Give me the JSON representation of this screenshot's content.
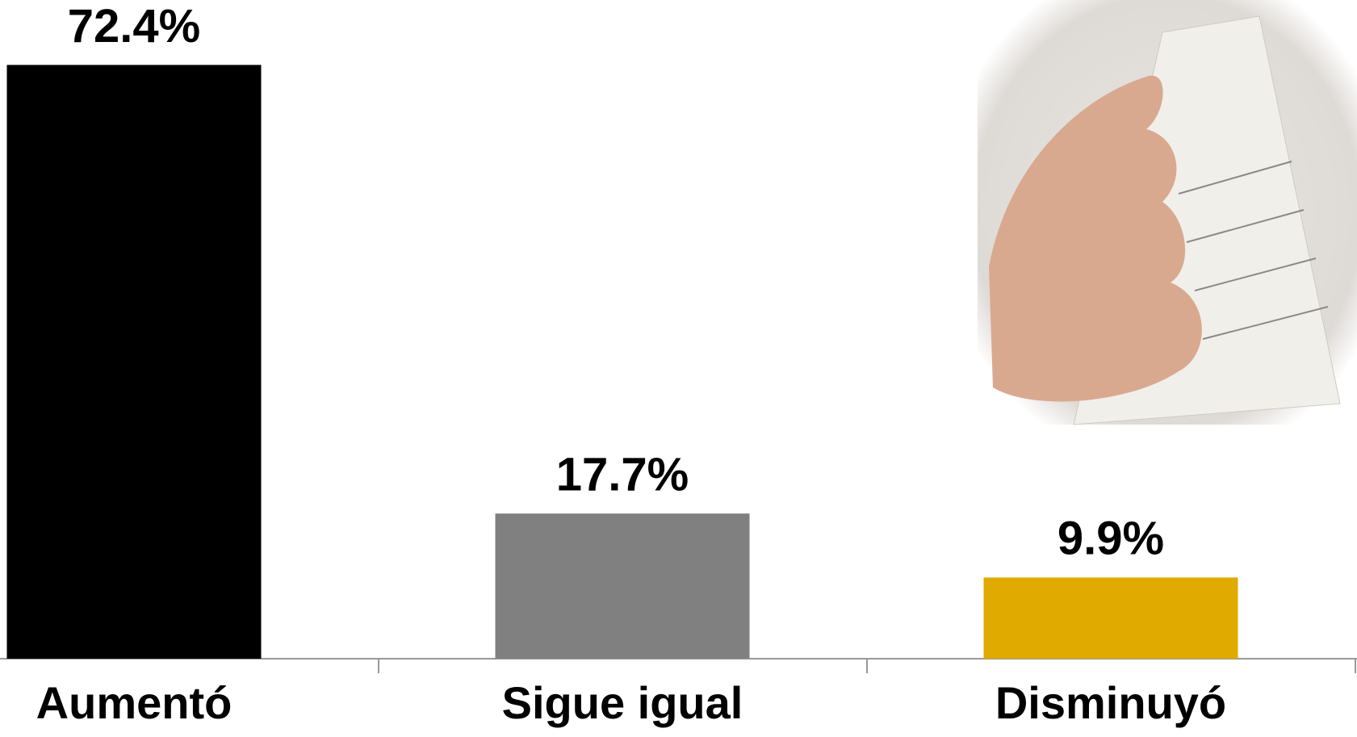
{
  "chart_data": {
    "type": "bar",
    "categories": [
      "Aumentó",
      "Sigue igual",
      "Disminuyó"
    ],
    "values": [
      72.4,
      17.7,
      9.9
    ],
    "value_labels": [
      "72.4%",
      "17.7%",
      "9.9%"
    ],
    "colors": [
      "#000000",
      "#808080",
      "#e0aa00"
    ]
  }
}
